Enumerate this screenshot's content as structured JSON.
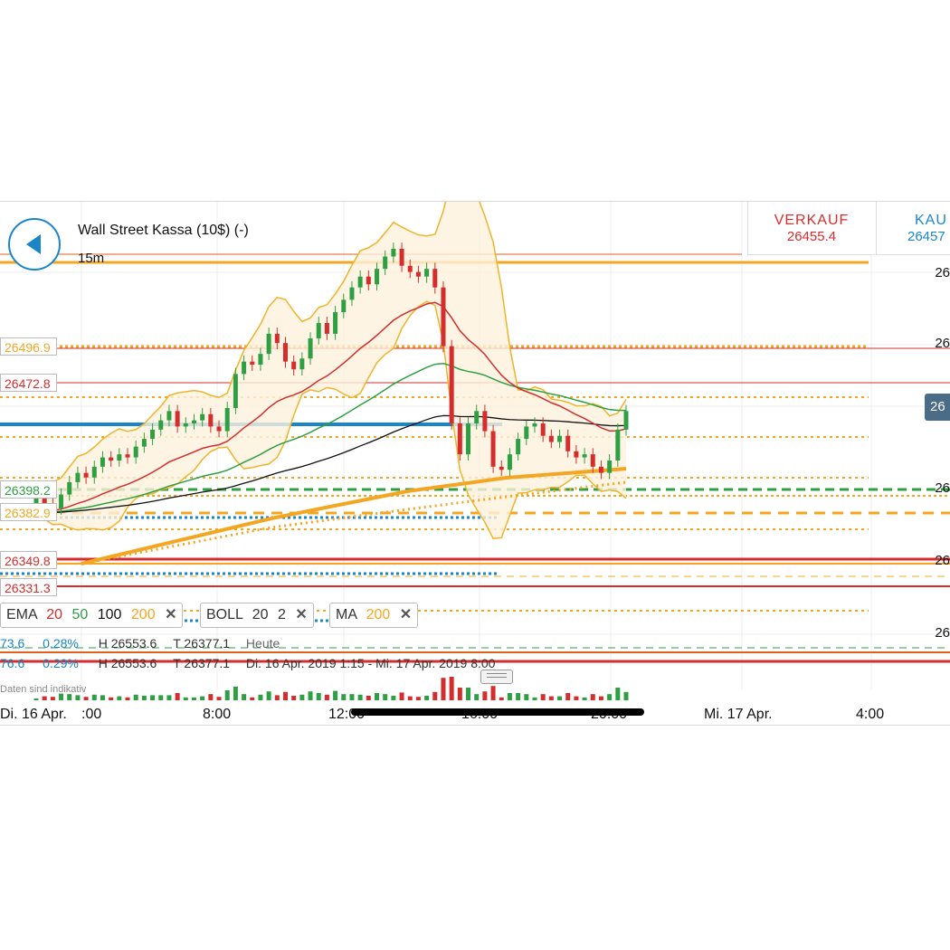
{
  "header": {
    "instrument": "Wall Street Kassa (10$) (-)",
    "timeframe": "15m",
    "back_label": "back"
  },
  "quote": {
    "sell_label": "VERKAUF",
    "sell_price": "26455.4",
    "buy_label": "KAU",
    "buy_price": "26457"
  },
  "levels": [
    {
      "label": "26496.9",
      "color": "#f4a623"
    },
    {
      "label": "26472.8",
      "color": "#d42d2d"
    },
    {
      "label": "26398.2",
      "color": "#2ea043"
    },
    {
      "label": "26382.9",
      "color": "#f4a623"
    },
    {
      "label": "26349.8",
      "color": "#d42d2d"
    },
    {
      "label": "26331.3",
      "color": "#d42d2d"
    }
  ],
  "right_axis": [
    "26",
    "26",
    "26",
    "26",
    "26"
  ],
  "current_price_tag": "26",
  "indicators": {
    "ema": {
      "name": "EMA",
      "p1": "20",
      "p2": "50",
      "p3": "100",
      "p4": "200"
    },
    "boll": {
      "name": "BOLL",
      "p1": "20",
      "p2": "2"
    },
    "ma": {
      "name": "MA",
      "p1": "200"
    },
    "close_symbol": "✕"
  },
  "info_rows": [
    {
      "left": "73.6",
      "pct": "0.28%",
      "high": "H 26553.6",
      "low": "T 26377.1",
      "range": "Heute"
    },
    {
      "left": "76.6",
      "pct": "0.29%",
      "high": "H 26553.6",
      "low": "T 26377.1",
      "range": "Di. 16 Apr. 2019 1:15 - Mi. 17 Apr. 2019 8:00"
    }
  ],
  "disclaimer": "Daten sind indikativ",
  "x_axis": [
    "Di. 16 Apr.",
    ":00",
    "8:00",
    "12:00",
    "16:00",
    "20:00",
    "Mi. 17 Apr.",
    "4:00"
  ],
  "colors": {
    "accent": "#1a86c8",
    "up": "#2ea043",
    "down": "#d42d2d",
    "ema20": "#d42d2d",
    "ema50": "#2ea043",
    "ema100": "#111111",
    "ema200": "#f4a623",
    "boll": "#f0b429"
  },
  "chart_data": {
    "type": "candlestick",
    "timeframe": "15m",
    "y_range": [
      26320,
      26560
    ],
    "candles_close": [
      26392,
      26388,
      26385,
      26394,
      26402,
      26408,
      26405,
      26412,
      26418,
      26416,
      26420,
      26418,
      26425,
      26430,
      26436,
      26442,
      26448,
      26438,
      26440,
      26442,
      26446,
      26438,
      26435,
      26450,
      26472,
      26480,
      26478,
      26485,
      26498,
      26492,
      26480,
      26475,
      26482,
      26495,
      26505,
      26498,
      26512,
      26520,
      26528,
      26535,
      26530,
      26540,
      26548,
      26553,
      26542,
      26538,
      26535,
      26540,
      26528,
      26490,
      26440,
      26420,
      26440,
      26448,
      26435,
      26412,
      26410,
      26420,
      26430,
      26438,
      26440,
      26432,
      26428,
      26432,
      26422,
      26418,
      26420,
      26412,
      26408,
      26416,
      26436,
      26448
    ]
  }
}
